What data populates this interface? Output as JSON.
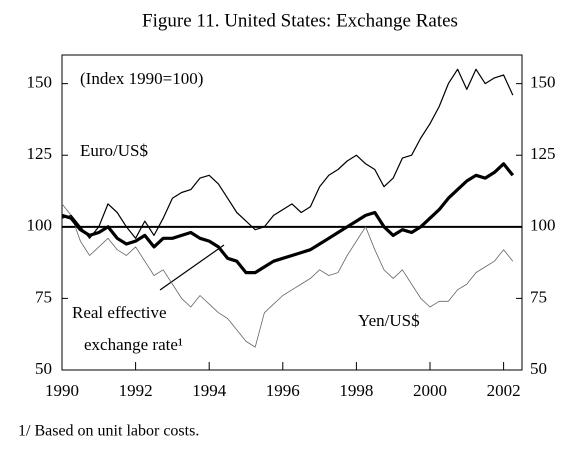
{
  "chart_data": {
    "type": "line",
    "title": "Figure 11. United States:  Exchange Rates",
    "subtitle": "(Index 1990=100)",
    "footnote": "1/ Based on unit labor costs.",
    "annotations": [
      "Euro/US$",
      "Yen/US$",
      "Real effective",
      "exchange rate¹"
    ],
    "x": [
      1990,
      1990.25,
      1990.5,
      1990.75,
      1991,
      1991.25,
      1991.5,
      1991.75,
      1992,
      1992.25,
      1992.5,
      1992.75,
      1993,
      1993.25,
      1993.5,
      1993.75,
      1994,
      1994.25,
      1994.5,
      1994.75,
      1995,
      1995.25,
      1995.5,
      1995.75,
      1996,
      1996.25,
      1996.5,
      1996.75,
      1997,
      1997.25,
      1997.5,
      1997.75,
      1998,
      1998.25,
      1998.5,
      1998.75,
      1999,
      1999.25,
      1999.5,
      1999.75,
      2000,
      2000.25,
      2000.5,
      2000.75,
      2001,
      2001.25,
      2001.5,
      2001.75,
      2002,
      2002.25
    ],
    "series": [
      {
        "name": "Euro/US$",
        "color": "#000000",
        "line_width": 1.2,
        "values": [
          103,
          104,
          100,
          96,
          100,
          108,
          105,
          100,
          96,
          102,
          97,
          103,
          110,
          112,
          113,
          117,
          118,
          115,
          110,
          105,
          102,
          99,
          100,
          104,
          106,
          108,
          105,
          107,
          114,
          118,
          120,
          123,
          125,
          122,
          120,
          114,
          117,
          124,
          125,
          131,
          136,
          142,
          150,
          155,
          148,
          155,
          150,
          152,
          153,
          146
        ]
      },
      {
        "name": "Real effective exchange rate¹",
        "color": "#000000",
        "line_width": 3.2,
        "values": [
          104,
          103,
          99,
          97,
          98,
          100,
          96,
          94,
          95,
          97,
          93,
          96,
          96,
          97,
          98,
          96,
          95,
          93,
          89,
          88,
          84,
          84,
          86,
          88,
          89,
          90,
          91,
          92,
          94,
          96,
          98,
          100,
          102,
          104,
          105,
          100,
          97,
          99,
          98,
          100,
          103,
          106,
          110,
          113,
          116,
          118,
          117,
          119,
          122,
          118
        ]
      },
      {
        "name": "Yen/US$",
        "color": "#666666",
        "line_width": 0.8,
        "values": [
          108,
          104,
          95,
          90,
          93,
          96,
          92,
          90,
          93,
          88,
          83,
          85,
          80,
          75,
          72,
          76,
          73,
          70,
          68,
          64,
          60,
          58,
          70,
          73,
          76,
          78,
          80,
          82,
          85,
          83,
          84,
          90,
          95,
          100,
          92,
          85,
          82,
          85,
          80,
          75,
          72,
          74,
          74,
          78,
          80,
          84,
          86,
          88,
          92,
          88
        ]
      }
    ],
    "reference_line": 100,
    "xlim": [
      1990,
      2002.5
    ],
    "xticks": [
      1990,
      1992,
      1994,
      1996,
      1998,
      2000,
      2002
    ],
    "ylim": [
      50,
      160
    ],
    "yticks": [
      50,
      75,
      100,
      125,
      150
    ],
    "y2lim": [
      50,
      160
    ],
    "y2ticks": [
      50,
      75,
      100,
      125,
      150
    ],
    "legend": false,
    "grid": false
  }
}
